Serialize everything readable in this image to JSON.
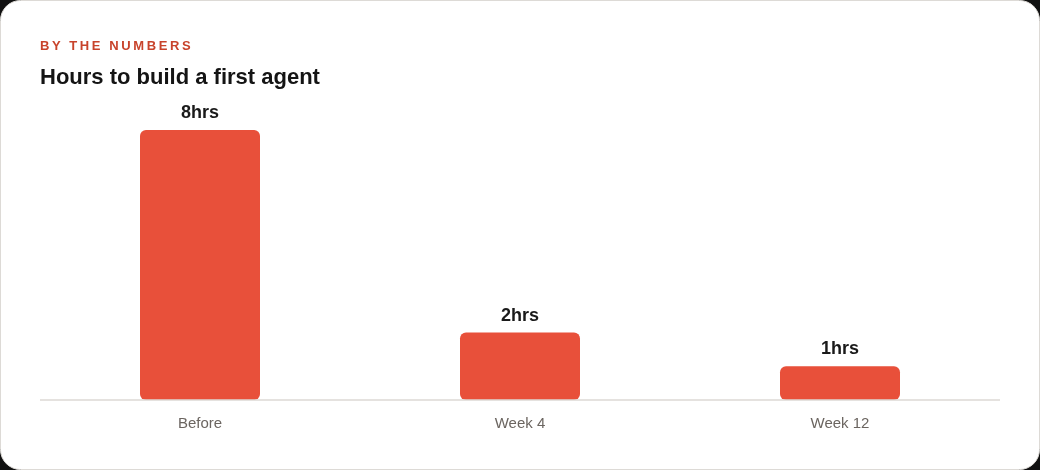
{
  "chart_data": {
    "type": "bar",
    "subtitle": "BY THE NUMBERS",
    "title": "Hours to build a first agent",
    "categories": [
      "Before",
      "Week 4",
      "Week 12"
    ],
    "values": [
      8,
      2,
      1
    ],
    "color": "#e8503a",
    "value_labels": [
      "8hrs",
      "2hrs",
      "1hrs"
    ]
  }
}
